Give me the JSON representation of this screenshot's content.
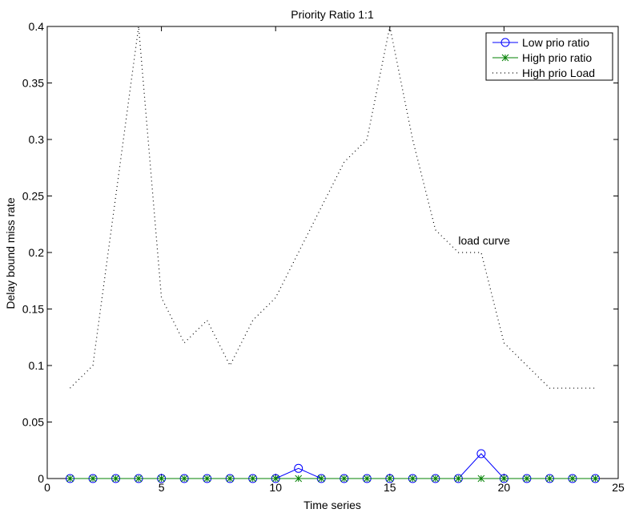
{
  "chart_data": {
    "type": "line",
    "title": "Priority Ratio 1:1",
    "xlabel": "Time series",
    "ylabel": "Delay bound miss rate",
    "xlim": [
      0,
      25
    ],
    "ylim": [
      0,
      0.4
    ],
    "xticks": [
      0,
      5,
      10,
      15,
      20,
      25
    ],
    "xtick_labels": [
      "0",
      "5",
      "10",
      "15",
      "20",
      "25"
    ],
    "yticks": [
      0,
      0.05,
      0.1,
      0.15,
      0.2,
      0.25,
      0.3,
      0.35,
      0.4
    ],
    "ytick_labels": [
      "0",
      "0.05",
      "0.1",
      "0.15",
      "0.2",
      "0.25",
      "0.3",
      "0.35",
      "0.4"
    ],
    "grid": false,
    "legend_position": "top-right",
    "x": [
      1,
      2,
      3,
      4,
      5,
      6,
      7,
      8,
      9,
      10,
      11,
      12,
      13,
      14,
      15,
      16,
      17,
      18,
      19,
      20,
      21,
      22,
      23,
      24
    ],
    "series": [
      {
        "name": "Low prio ratio",
        "color": "#0000ff",
        "marker": "circle",
        "line": "solid",
        "values": [
          0,
          0,
          0,
          0,
          0,
          0,
          0,
          0,
          0,
          0,
          0.009,
          0,
          0,
          0,
          0,
          0,
          0,
          0,
          0.022,
          0,
          0,
          0,
          0,
          0
        ]
      },
      {
        "name": "High prio ratio",
        "color": "#008000",
        "marker": "star",
        "line": "solid",
        "values": [
          0,
          0,
          0,
          0,
          0,
          0,
          0,
          0,
          0,
          0,
          0,
          0,
          0,
          0,
          0,
          0,
          0,
          0,
          0,
          0,
          0,
          0,
          0,
          0
        ]
      },
      {
        "name": "High prio Load",
        "color": "#000000",
        "marker": "none",
        "line": "dotted",
        "values": [
          0.08,
          0.1,
          0.25,
          0.4,
          0.16,
          0.12,
          0.14,
          0.1,
          0.14,
          0.16,
          0.2,
          0.24,
          0.28,
          0.3,
          0.4,
          0.3,
          0.22,
          0.2,
          0.2,
          0.12,
          0.1,
          0.08,
          0.08,
          0.08
        ]
      }
    ],
    "annotations": [
      {
        "text": "load curve",
        "x": 18,
        "y": 0.207
      }
    ]
  }
}
